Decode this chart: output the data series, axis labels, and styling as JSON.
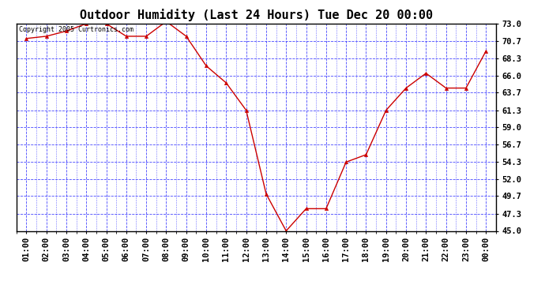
{
  "title": "Outdoor Humidity (Last 24 Hours) Tue Dec 20 00:00",
  "copyright": "Copyright 2005 Curtronics.com",
  "x_labels": [
    "01:00",
    "02:00",
    "03:00",
    "04:00",
    "05:00",
    "06:00",
    "07:00",
    "08:00",
    "09:00",
    "10:00",
    "11:00",
    "12:00",
    "13:00",
    "14:00",
    "15:00",
    "16:00",
    "17:00",
    "18:00",
    "19:00",
    "20:00",
    "21:00",
    "22:00",
    "23:00",
    "00:00"
  ],
  "y_values": [
    71.0,
    71.3,
    72.0,
    73.0,
    73.0,
    71.3,
    71.3,
    73.3,
    71.3,
    67.3,
    65.0,
    61.3,
    50.0,
    45.0,
    48.0,
    48.0,
    54.3,
    55.3,
    61.3,
    64.3,
    66.3,
    64.3,
    64.3,
    69.3
  ],
  "line_color": "#cc0000",
  "marker": "^",
  "marker_size": 3,
  "bg_color": "#ffffff",
  "grid_color": "#3333ff",
  "title_fontsize": 11,
  "tick_fontsize": 7.5,
  "y_min": 45.0,
  "y_max": 73.0,
  "y_ticks": [
    45.0,
    47.3,
    49.7,
    52.0,
    54.3,
    56.7,
    59.0,
    61.3,
    63.7,
    66.0,
    68.3,
    70.7,
    73.0
  ],
  "outer_bg": "#ffffff",
  "border_color": "#000000"
}
